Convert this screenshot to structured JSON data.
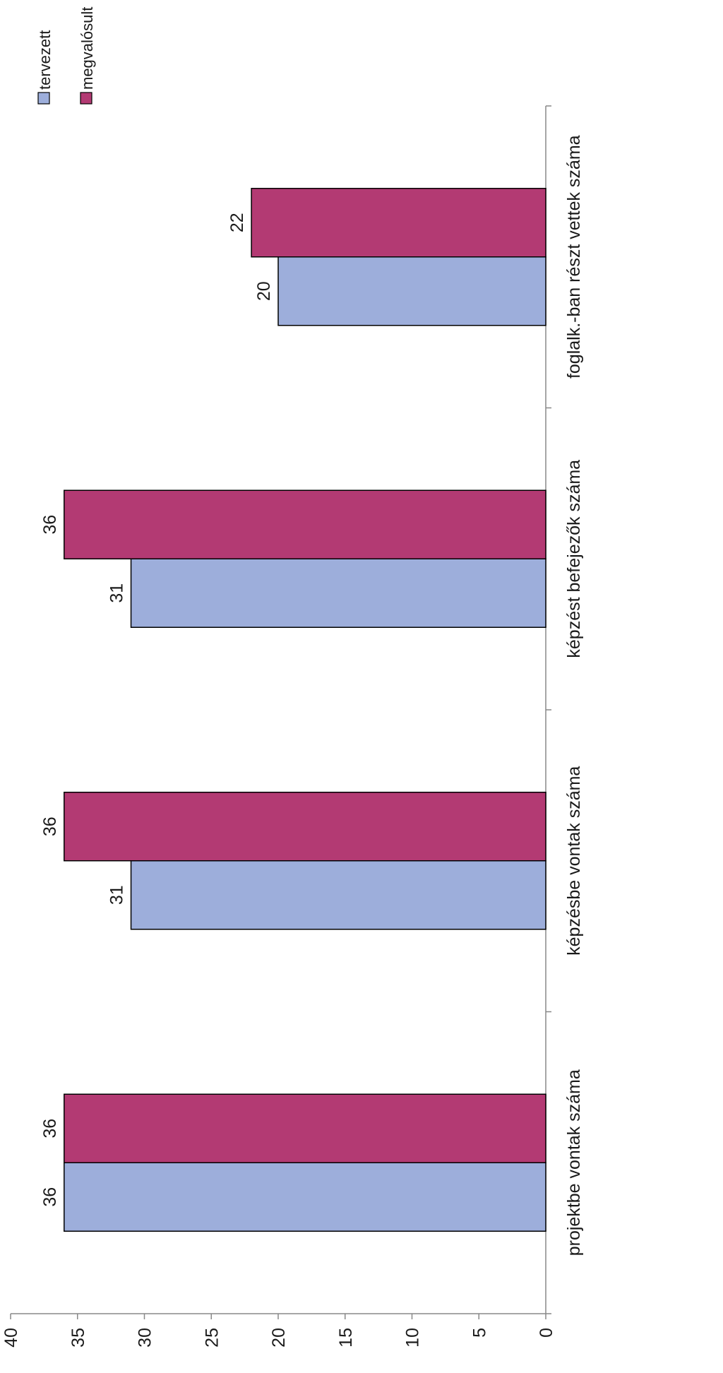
{
  "chart_data": {
    "type": "bar",
    "orientation": "rotated-90",
    "categories": [
      "projektbe vontak száma",
      "képzésbe vontak száma",
      "képzést befejezők száma",
      "foglalk.-ban részt vettek száma"
    ],
    "series": [
      {
        "name": "tervezett",
        "values": [
          36,
          31,
          31,
          20
        ],
        "color": "#9DAEDB"
      },
      {
        "name": "megvalósult",
        "values": [
          36,
          36,
          36,
          22
        ],
        "color": "#B33A73"
      }
    ],
    "ylim": [
      0,
      40
    ],
    "yticks": [
      "0",
      "5",
      "10",
      "15",
      "20",
      "25",
      "30",
      "35",
      "40"
    ],
    "data_labels": true,
    "grid": false,
    "legend_position": "top-right",
    "title": "",
    "xlabel": "",
    "ylabel": ""
  }
}
